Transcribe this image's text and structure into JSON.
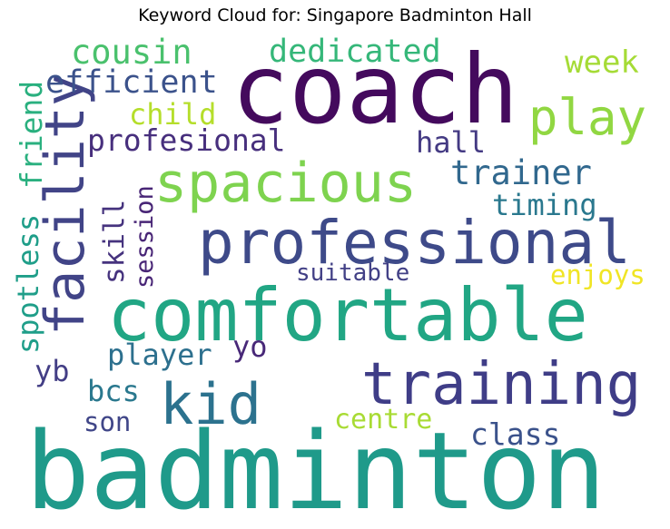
{
  "chart_data": {
    "type": "wordcloud",
    "title": "Keyword Cloud for: Singapore Badminton Hall",
    "colormap": "viridis",
    "words": [
      {
        "text": "badminton",
        "weight": 1.0,
        "color": "#1f9a8a",
        "orientation": "horizontal"
      },
      {
        "text": "coach",
        "weight": 0.86,
        "color": "#440a5d",
        "orientation": "horizontal"
      },
      {
        "text": "comfortable",
        "weight": 0.7,
        "color": "#21a684",
        "orientation": "horizontal"
      },
      {
        "text": "professional",
        "weight": 0.58,
        "color": "#3e4a89",
        "orientation": "horizontal"
      },
      {
        "text": "training",
        "weight": 0.55,
        "color": "#3f3d87",
        "orientation": "horizontal"
      },
      {
        "text": "spacious",
        "weight": 0.52,
        "color": "#7ed34f",
        "orientation": "horizontal"
      },
      {
        "text": "facility",
        "weight": 0.52,
        "color": "#414487",
        "orientation": "vertical"
      },
      {
        "text": "kid",
        "weight": 0.5,
        "color": "#2c728e",
        "orientation": "horizontal"
      },
      {
        "text": "play",
        "weight": 0.42,
        "color": "#91d742",
        "orientation": "horizontal"
      },
      {
        "text": "trainer",
        "weight": 0.29,
        "color": "#31688e",
        "orientation": "horizontal"
      },
      {
        "text": "cousin",
        "weight": 0.29,
        "color": "#4ac16d",
        "orientation": "horizontal"
      },
      {
        "text": "dedicated",
        "weight": 0.28,
        "color": "#35b779",
        "orientation": "horizontal"
      },
      {
        "text": "efficient",
        "weight": 0.28,
        "color": "#3b528b",
        "orientation": "horizontal"
      },
      {
        "text": "week",
        "weight": 0.27,
        "color": "#a5db36",
        "orientation": "horizontal"
      },
      {
        "text": "profesional",
        "weight": 0.27,
        "color": "#472f7d",
        "orientation": "horizontal"
      },
      {
        "text": "friend",
        "weight": 0.27,
        "color": "#2ab07f",
        "orientation": "vertical"
      },
      {
        "text": "spotless",
        "weight": 0.27,
        "color": "#1f9e89",
        "orientation": "vertical"
      },
      {
        "text": "child",
        "weight": 0.26,
        "color": "#b5de2b",
        "orientation": "horizontal"
      },
      {
        "text": "hall",
        "weight": 0.26,
        "color": "#443a83",
        "orientation": "horizontal"
      },
      {
        "text": "timing",
        "weight": 0.26,
        "color": "#2a788e",
        "orientation": "horizontal"
      },
      {
        "text": "skill",
        "weight": 0.25,
        "color": "#46337e",
        "orientation": "vertical"
      },
      {
        "text": "session",
        "weight": 0.22,
        "color": "#482576",
        "orientation": "vertical"
      },
      {
        "text": "player",
        "weight": 0.26,
        "color": "#2d708e",
        "orientation": "horizontal"
      },
      {
        "text": "yo",
        "weight": 0.26,
        "color": "#482878",
        "orientation": "horizontal"
      },
      {
        "text": "yb",
        "weight": 0.26,
        "color": "#433e85",
        "orientation": "horizontal"
      },
      {
        "text": "bcs",
        "weight": 0.26,
        "color": "#2a788e",
        "orientation": "horizontal"
      },
      {
        "text": "son",
        "weight": 0.24,
        "color": "#404688",
        "orientation": "horizontal"
      },
      {
        "text": "enjoys",
        "weight": 0.24,
        "color": "#f0e525",
        "orientation": "horizontal"
      },
      {
        "text": "suitable",
        "weight": 0.21,
        "color": "#424086",
        "orientation": "horizontal"
      },
      {
        "text": "centre",
        "weight": 0.25,
        "color": "#a8db34",
        "orientation": "horizontal"
      },
      {
        "text": "class",
        "weight": 0.27,
        "color": "#3b528b",
        "orientation": "horizontal"
      }
    ]
  }
}
